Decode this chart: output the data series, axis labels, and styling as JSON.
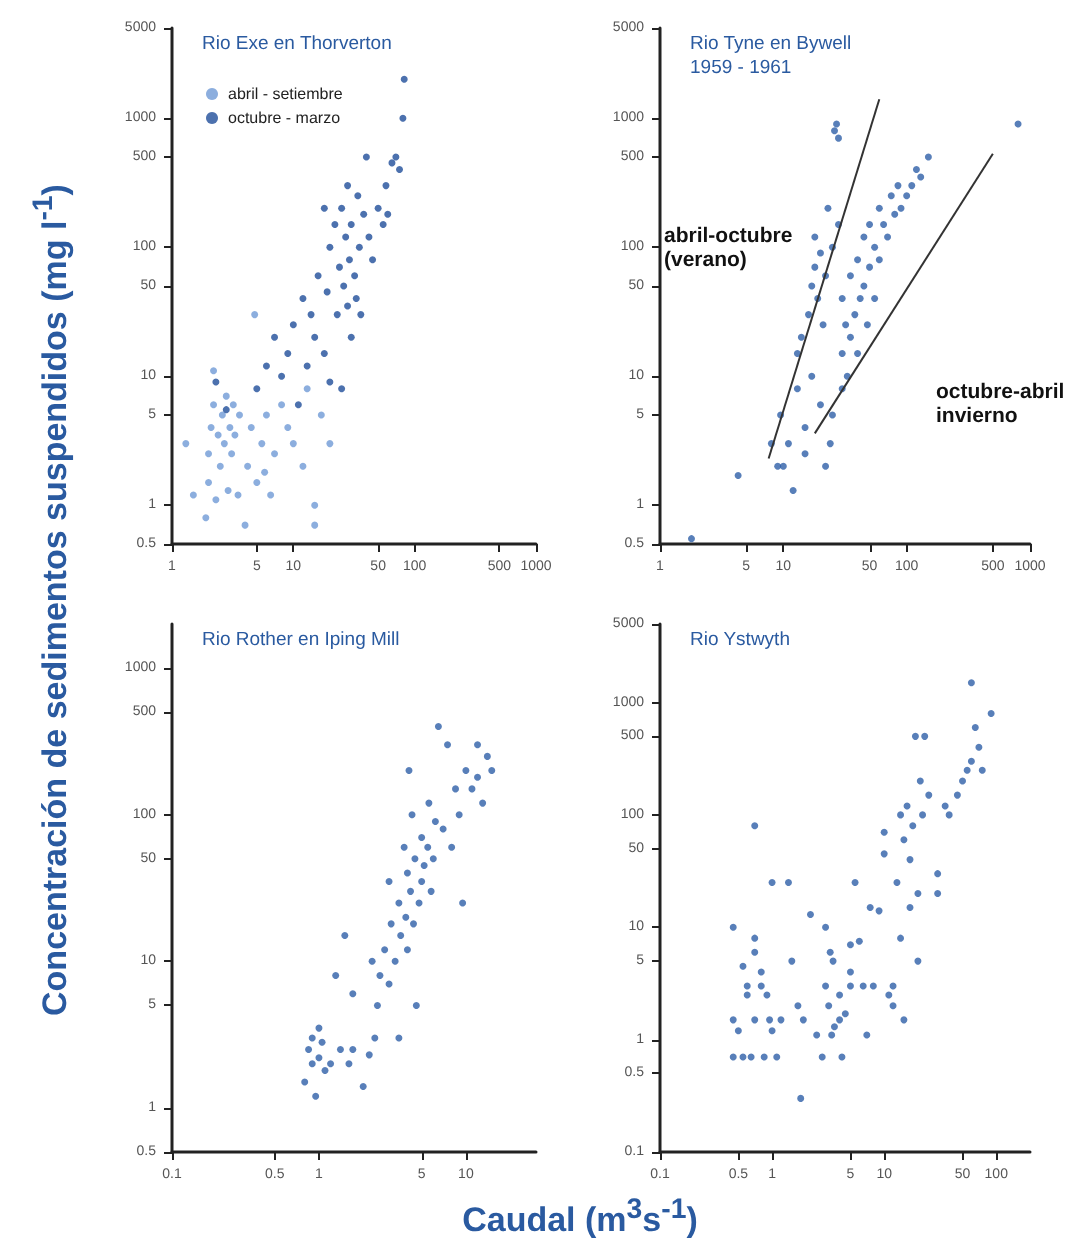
{
  "chart_data": [
    {
      "type": "scatter",
      "title": "Rio Exe en Thorverton",
      "ylabel": "Concentración de sedimentos suspendidos (mg l$^{-1}$)",
      "legend": "top left",
      "marker": "circle",
      "grid": false,
      "xlim": [
        1,
        1000
      ],
      "xticks": [
        1,
        5,
        10,
        50,
        100,
        500,
        1000
      ],
      "ylim": [
        0.5,
        5000
      ],
      "yticks": [
        0.5,
        1,
        5,
        10,
        50,
        100,
        500,
        1000,
        5000
      ],
      "log": "xy",
      "series": [
        {
          "name": "abril - setiembre",
          "color": "#6f9ad6",
          "x": [
            1.3,
            1.5,
            1.9,
            2,
            2,
            2.1,
            2.2,
            2.2,
            2.3,
            2.4,
            2.5,
            2.6,
            2.7,
            2.8,
            2.9,
            3,
            3.1,
            3.2,
            3.3,
            3.5,
            3.6,
            4,
            4.2,
            4.5,
            4.8,
            5,
            5.5,
            5.8,
            6,
            6.5,
            7,
            8,
            9,
            10,
            12,
            13,
            15,
            15,
            17,
            20
          ],
          "values": [
            3,
            1.2,
            0.8,
            1.5,
            2.5,
            4,
            6,
            11,
            1.1,
            3.5,
            2,
            5,
            3,
            7,
            1.3,
            4,
            2.5,
            6,
            3.5,
            1.2,
            5,
            0.7,
            2,
            4,
            30,
            1.5,
            3,
            1.8,
            5,
            1.2,
            2.5,
            6,
            4,
            3,
            2,
            8,
            1,
            0.7,
            5,
            3
          ]
        },
        {
          "name": "octubre - marzo",
          "color": "#1f4e9a",
          "x": [
            2.3,
            2.8,
            5,
            6,
            7,
            8,
            9,
            10,
            11,
            12,
            13,
            14,
            15,
            16,
            18,
            18,
            19,
            20,
            20,
            22,
            23,
            24,
            25,
            25,
            26,
            27,
            28,
            28,
            29,
            30,
            30,
            32,
            33,
            34,
            35,
            36,
            38,
            40,
            42,
            45,
            50,
            55,
            58,
            60,
            65,
            70,
            75,
            80,
            82
          ],
          "values": [
            9,
            5.5,
            8,
            12,
            20,
            10,
            15,
            25,
            6,
            40,
            12,
            30,
            20,
            60,
            15,
            200,
            45,
            9,
            100,
            150,
            30,
            70,
            8,
            200,
            50,
            120,
            35,
            300,
            80,
            20,
            150,
            60,
            40,
            250,
            100,
            30,
            180,
            500,
            120,
            80,
            200,
            150,
            300,
            180,
            450,
            500,
            400,
            1000,
            2000
          ]
        }
      ]
    },
    {
      "type": "scatter",
      "title": "Rio Tyne en Bywell",
      "subtitle": "1959 - 1961",
      "marker": "circle",
      "grid": false,
      "xlim": [
        1,
        1000
      ],
      "xticks": [
        1,
        5,
        10,
        50,
        100,
        500,
        1000
      ],
      "ylim": [
        0.5,
        5000
      ],
      "yticks": [
        0.5,
        1,
        5,
        10,
        50,
        100,
        500,
        1000,
        5000
      ],
      "log": "xy",
      "series": [
        {
          "color": "#2e5fa8",
          "x": [
            1.8,
            4.3,
            8,
            9,
            9.5,
            10,
            11,
            12,
            13,
            13,
            14,
            15,
            15,
            16,
            17,
            17,
            18,
            18,
            19,
            20,
            20,
            21,
            22,
            22,
            23,
            24,
            25,
            25,
            26,
            27,
            28,
            28,
            30,
            30,
            30,
            32,
            33,
            35,
            35,
            38,
            40,
            40,
            42,
            45,
            45,
            48,
            50,
            50,
            55,
            55,
            60,
            60,
            65,
            70,
            75,
            80,
            85,
            90,
            100,
            110,
            120,
            130,
            150,
            800
          ],
          "values": [
            0.55,
            1.7,
            3,
            2,
            5,
            2,
            3,
            1.3,
            8,
            15,
            20,
            2.5,
            4,
            30,
            10,
            50,
            70,
            120,
            40,
            90,
            6,
            25,
            60,
            2,
            200,
            3,
            5,
            100,
            800,
            900,
            150,
            700,
            8,
            40,
            15,
            25,
            10,
            20,
            60,
            30,
            15,
            80,
            40,
            50,
            120,
            25,
            70,
            150,
            40,
            100,
            80,
            200,
            150,
            120,
            250,
            180,
            300,
            200,
            250,
            300,
            400,
            350,
            500,
            900
          ]
        },
        {
          "type": "line",
          "marker": "none",
          "color": "#333333",
          "x": [
            7.6,
            60
          ],
          "values": [
            2.3,
            1400
          ]
        },
        {
          "type": "line",
          "marker": "none",
          "color": "#333333",
          "x": [
            18,
            500
          ],
          "values": [
            3.6,
            530
          ]
        }
      ],
      "annotations": [
        "abril-octubre\n(verano)",
        "octubre-abril\ninvierno"
      ]
    },
    {
      "type": "scatter",
      "title": "Rio Rother en Iping Mill",
      "xlabel": "Caudal (m$^{3}$s$^{-1}$)",
      "marker": "circle",
      "grid": false,
      "xlim": [
        0.1,
        30
      ],
      "xticks": [
        0.1,
        0.5,
        1,
        5,
        10
      ],
      "ylim": [
        0.5,
        2000
      ],
      "yticks": [
        0.5,
        1,
        5,
        10,
        50,
        100,
        500,
        1000
      ],
      "log": "xy",
      "series": [
        {
          "color": "#2e5fa8",
          "x": [
            0.8,
            0.85,
            0.9,
            0.9,
            0.95,
            1,
            1,
            1.05,
            1.1,
            1.2,
            1.3,
            1.4,
            1.5,
            1.6,
            1.7,
            1.7,
            2,
            2.2,
            2.4,
            2.3,
            2.5,
            2.6,
            2.8,
            3,
            3,
            3.1,
            3.3,
            3.5,
            3.5,
            3.6,
            3.8,
            3.9,
            4,
            4,
            4.1,
            4.2,
            4.3,
            4.4,
            4.5,
            4.6,
            4.8,
            5,
            5,
            5.2,
            5.5,
            5.6,
            5.8,
            6,
            6.2,
            6.5,
            7,
            7.5,
            8,
            8.5,
            9,
            9.5,
            10,
            11,
            12,
            12,
            13,
            14,
            15
          ],
          "values": [
            1.5,
            2.5,
            3,
            2,
            1.2,
            3.5,
            2.2,
            2.8,
            1.8,
            2,
            8,
            2.5,
            15,
            2,
            6,
            2.5,
            1.4,
            2.3,
            3,
            10,
            5,
            8,
            12,
            7,
            35,
            18,
            10,
            25,
            3,
            15,
            60,
            20,
            12,
            40,
            200,
            30,
            100,
            18,
            50,
            5,
            25,
            35,
            70,
            45,
            60,
            120,
            30,
            50,
            90,
            400,
            80,
            300,
            60,
            150,
            100,
            25,
            200,
            150,
            300,
            180,
            120,
            250,
            200
          ]
        }
      ]
    },
    {
      "type": "scatter",
      "title": "Rio Ystwyth",
      "marker": "circle",
      "grid": false,
      "xlim": [
        0.1,
        200
      ],
      "xticks": [
        0.1,
        0.5,
        1,
        5,
        10,
        50,
        100
      ],
      "ylim": [
        0.1,
        5000
      ],
      "yticks": [
        0.1,
        0.5,
        1,
        5,
        10,
        50,
        100,
        500,
        1000,
        5000
      ],
      "log": "xy",
      "series": [
        {
          "color": "#2e5fa8",
          "x": [
            0.45,
            0.45,
            0.45,
            0.5,
            0.55,
            0.55,
            0.6,
            0.6,
            0.65,
            0.7,
            0.7,
            0.7,
            0.7,
            0.8,
            0.8,
            0.85,
            0.9,
            0.95,
            1,
            1,
            1.1,
            1.2,
            1.4,
            1.5,
            1.7,
            1.8,
            1.9,
            2.2,
            2.5,
            2.8,
            3,
            3,
            3.2,
            3.3,
            3.4,
            3.5,
            3.6,
            4,
            4,
            4.2,
            4.5,
            5,
            5,
            5,
            5.5,
            6,
            6.5,
            7,
            7.5,
            8,
            9,
            10,
            10,
            11,
            12,
            12,
            13,
            14,
            14,
            15,
            15,
            16,
            17,
            17,
            18,
            19,
            20,
            20,
            21,
            22,
            23,
            25,
            30,
            30,
            35,
            38,
            45,
            50,
            55,
            60,
            60,
            65,
            70,
            75,
            90
          ],
          "values": [
            10,
            1.5,
            0.7,
            1.2,
            4.5,
            0.7,
            2.5,
            3,
            0.7,
            6,
            8,
            1.5,
            80,
            4,
            3,
            0.7,
            2.5,
            1.5,
            25,
            1.2,
            0.7,
            1.5,
            25,
            5,
            2,
            0.3,
            1.5,
            13,
            1.1,
            0.7,
            10,
            3,
            2,
            6,
            1.1,
            5,
            1.3,
            1.5,
            2.5,
            0.7,
            1.7,
            7,
            4,
            3,
            25,
            7.5,
            3,
            1.1,
            15,
            3,
            14,
            45,
            70,
            2.5,
            3,
            2,
            25,
            8,
            100,
            1.5,
            60,
            120,
            40,
            15,
            80,
            500,
            20,
            5,
            200,
            100,
            500,
            150,
            30,
            20,
            120,
            100,
            150,
            200,
            250,
            300,
            1500,
            600,
            400,
            250,
            800
          ]
        }
      ]
    }
  ]
}
